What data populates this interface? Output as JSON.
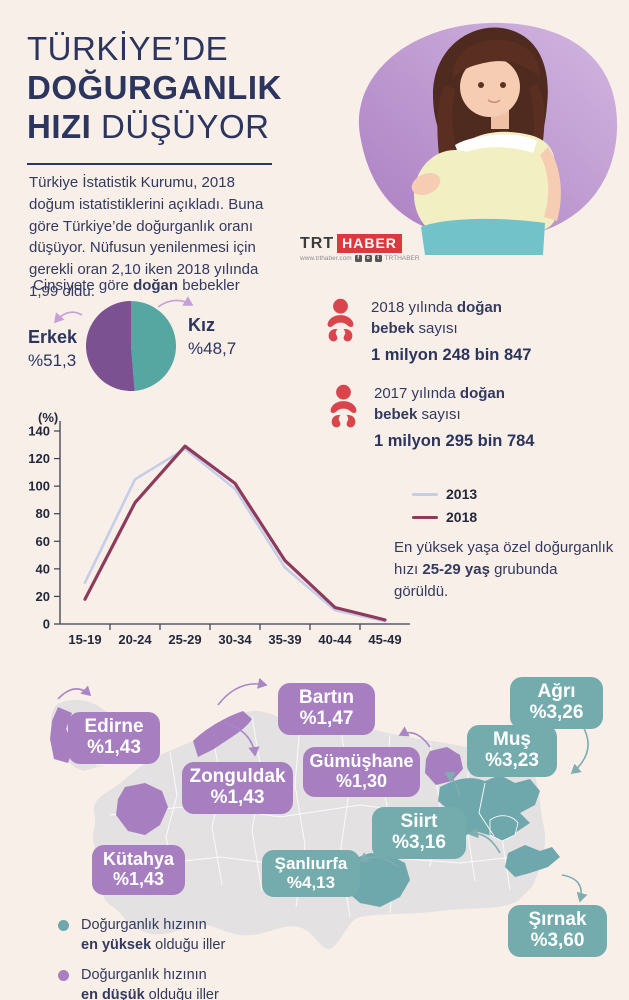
{
  "header": {
    "title_line1": "TÜRKİYE’DE",
    "title_line2": "DOĞURGANLIK",
    "title_line3_bold": "HIZI",
    "title_line3_rest": " DÜŞÜYOR",
    "paragraph": "Türkiye İstatistik Kurumu, 2018 doğum istatistiklerini açıkladı. Buna göre Türkiye’de doğurganlık oranı düşüyor. Nüfusun yenilenmesi için gerekli oran 2,10 iken 2018 yılında 1,99 oldu."
  },
  "brand": {
    "trt": "TRT",
    "haber": "HABER",
    "website": "www.trthaber.com",
    "social_handle": "TRTHABER"
  },
  "gender_section": {
    "heading_prefix": "Cinsiyete göre ",
    "heading_bold": "doğan",
    "heading_suffix": " bebekler"
  },
  "birth_stats": [
    {
      "prefix": "2018 yılında ",
      "bold1": "doğan",
      "line2_bold": "bebek",
      "line2_rest": " sayısı",
      "value": "1 milyon 248 bin 847"
    },
    {
      "prefix": "2017 yılında ",
      "bold1": "doğan",
      "line2_bold": "bebek",
      "line2_rest": " sayısı",
      "value": "1 milyon 295 bin 784"
    }
  ],
  "chart_data": [
    {
      "type": "pie",
      "title": "Cinsiyete göre doğan bebekler",
      "slices": [
        {
          "label": "Kız",
          "value": 48.7,
          "display": "%48,7",
          "color": "#56a7a2"
        },
        {
          "label": "Erkek",
          "value": 51.3,
          "display": "%51,3",
          "color": "#7c5191"
        }
      ],
      "start_angle_deg": 0,
      "legend_position": "sides"
    },
    {
      "type": "line",
      "title": "Yaşa özel doğurganlık hızı",
      "unit_label": "(%)",
      "categories": [
        "15-19",
        "20-24",
        "25-29",
        "30-34",
        "35-39",
        "40-44",
        "45-49"
      ],
      "series": [
        {
          "name": "2013",
          "color": "#c6cde9",
          "width": 2.6,
          "values": [
            30,
            105,
            127,
            98,
            41,
            10,
            2
          ]
        },
        {
          "name": "2018",
          "color": "#8e3a5a",
          "width": 3.2,
          "values": [
            18,
            88,
            129,
            102,
            46,
            12,
            3
          ]
        }
      ],
      "ylim": [
        0,
        140
      ],
      "yticks": [
        0,
        20,
        40,
        60,
        80,
        100,
        120,
        140
      ],
      "grid": false,
      "legend_position": "right"
    }
  ],
  "chart_note": {
    "prefix": "En yüksek yaşa özel doğurganlık hızı ",
    "bold": "25-29 yaş",
    "suffix": " grubunda görüldü."
  },
  "map": {
    "labels": [
      {
        "name": "Edirne",
        "value": "%1,43",
        "type": "lowest"
      },
      {
        "name": "Bartın",
        "value": "%1,47",
        "type": "lowest"
      },
      {
        "name": "Zonguldak",
        "value": "%1,43",
        "type": "lowest"
      },
      {
        "name": "Gümüşhane",
        "value": "%1,30",
        "type": "lowest"
      },
      {
        "name": "Kütahya",
        "value": "%1,43",
        "type": "lowest"
      },
      {
        "name": "Ağrı",
        "value": "%3,26",
        "type": "highest"
      },
      {
        "name": "Muş",
        "value": "%3,23",
        "type": "highest"
      },
      {
        "name": "Siirt",
        "value": "%3,16",
        "type": "highest"
      },
      {
        "name": "Şanlıurfa",
        "value": "%4,13",
        "type": "highest"
      },
      {
        "name": "Şırnak",
        "value": "%3,60",
        "type": "highest"
      }
    ],
    "legend": [
      {
        "line1": "Doğurganlık hızının",
        "bold": "en yüksek",
        "rest": " olduğu iller",
        "color": "#6fa8ac"
      },
      {
        "line1": "Doğurganlık hızının",
        "bold": "en düşük",
        "rest": " olduğu iller",
        "color": "#a87fc0"
      }
    ]
  },
  "colors": {
    "background": "#f9efe9",
    "navy_text": "#2c355e",
    "pie_male_purple": "#7c5191",
    "pie_female_teal": "#56a7a2",
    "baby_icon_red": "#d8454d",
    "line_2013": "#c6cde9",
    "line_2018": "#8e3a5a",
    "map_base_gray": "#e3e1e1",
    "map_lowest_purple": "#a77fc0",
    "map_highest_teal": "#74abad",
    "brand_red": "#d93a3e"
  }
}
